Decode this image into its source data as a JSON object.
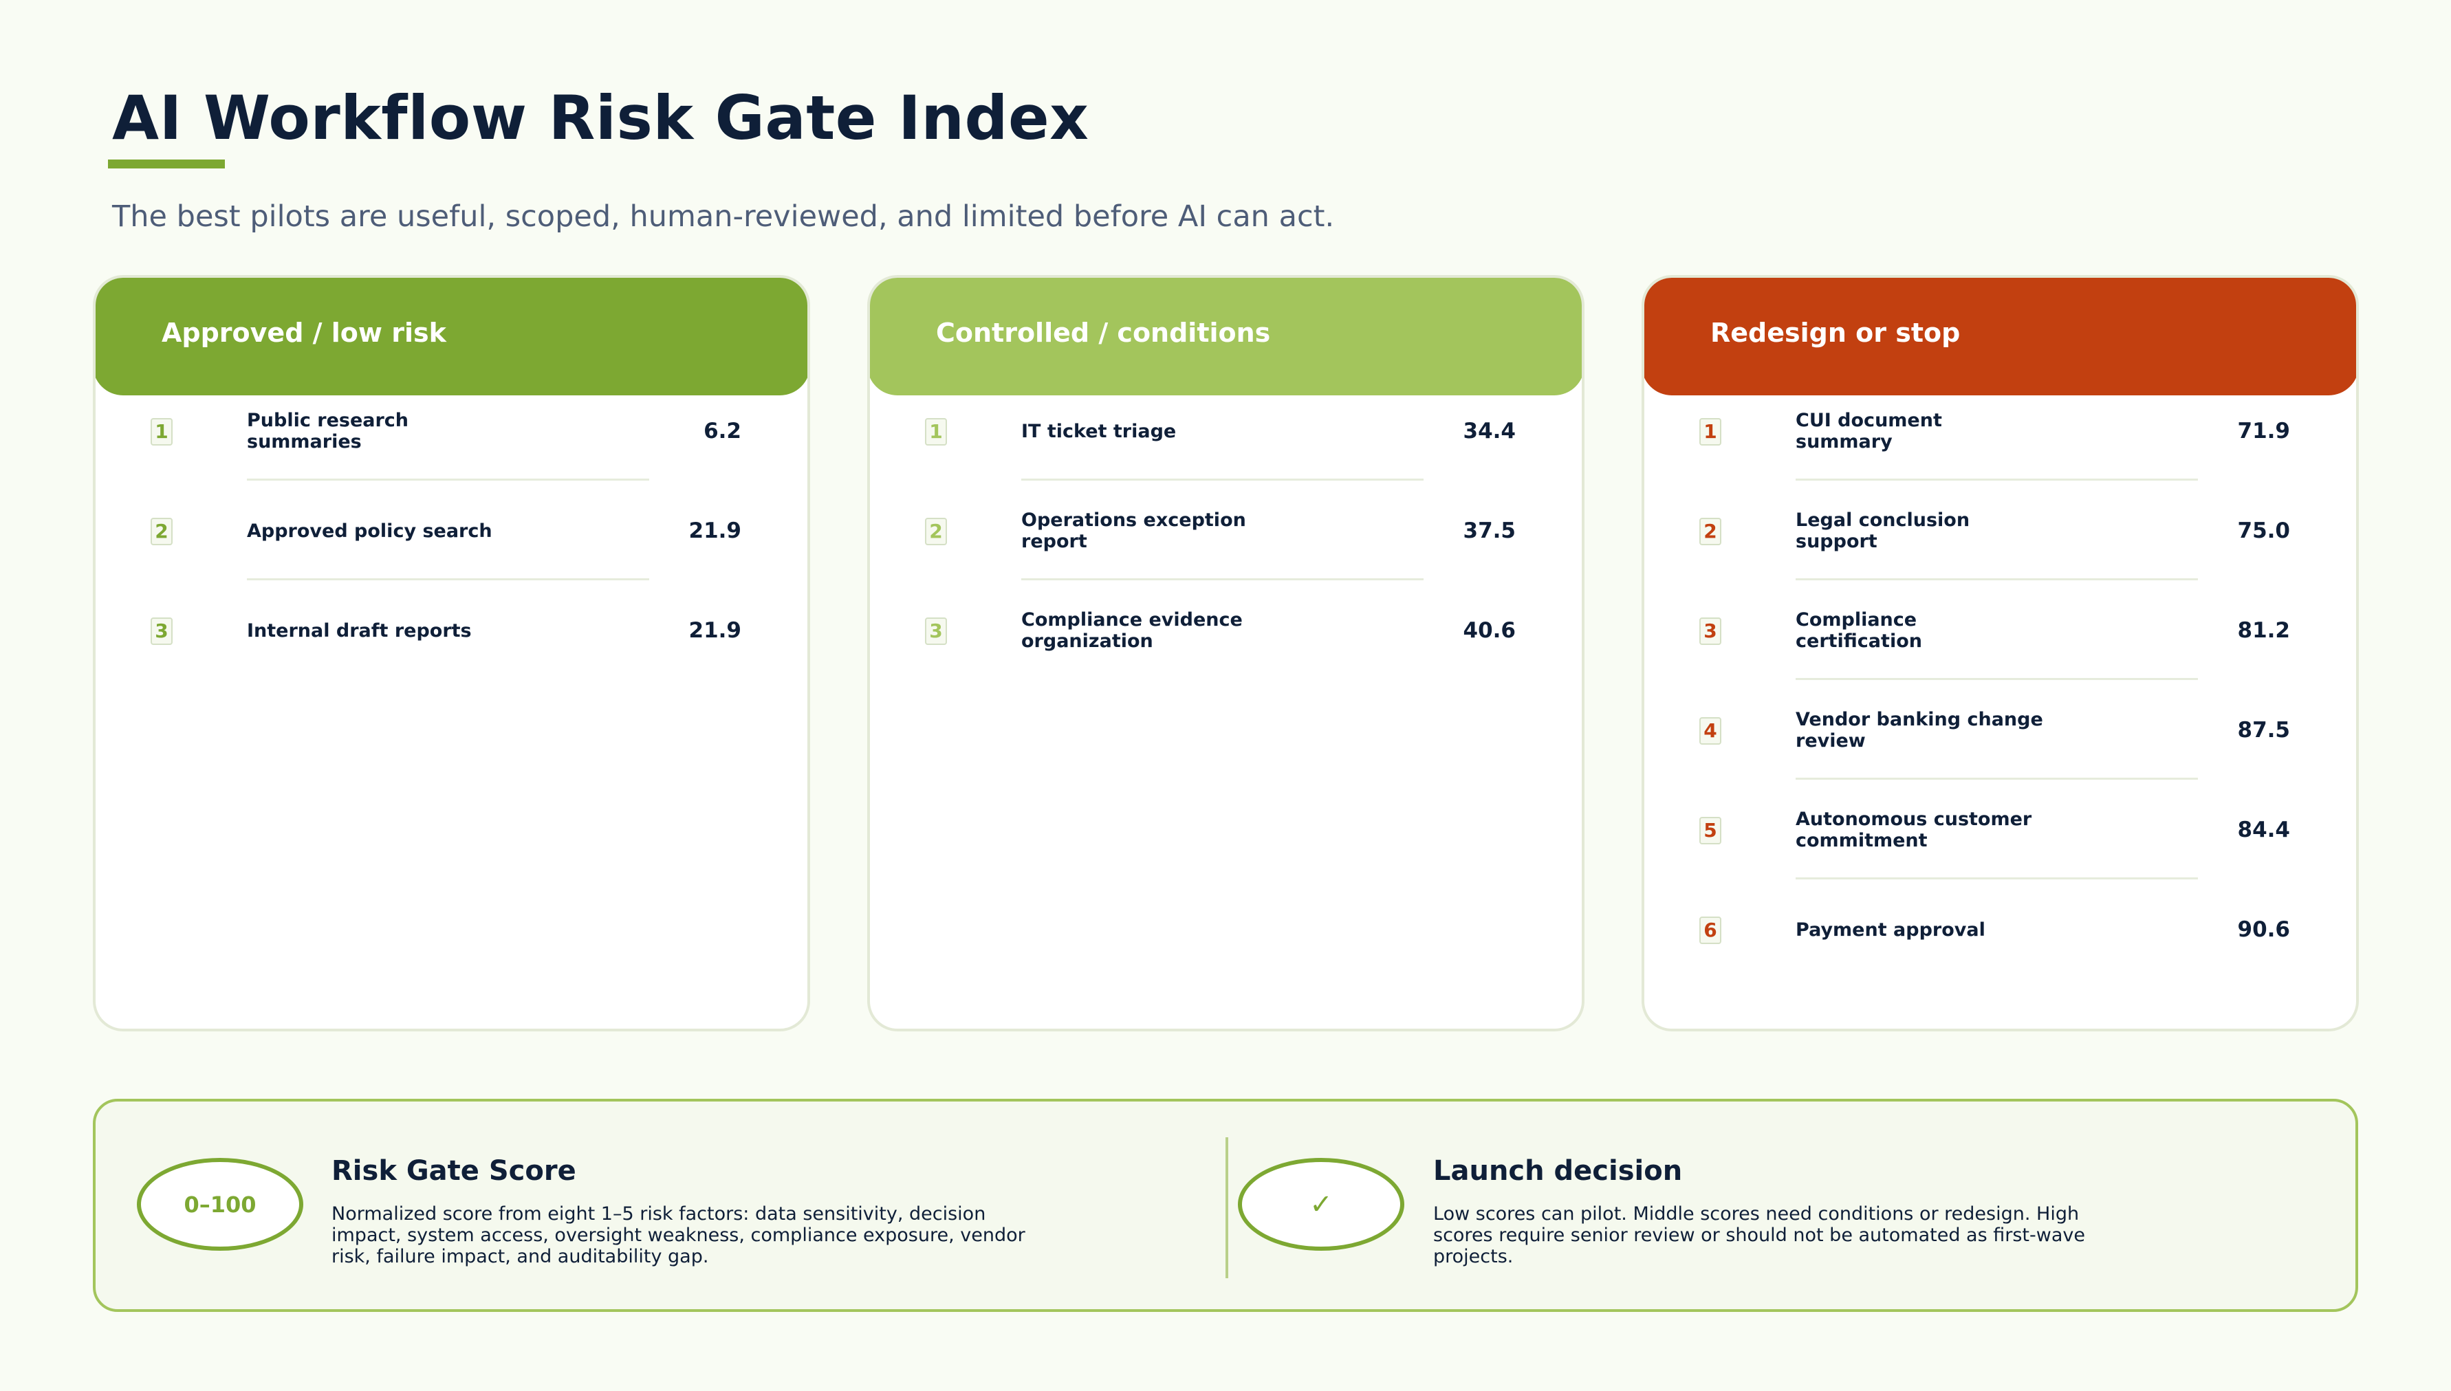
{
  "title": "AI Workflow Risk Gate Index",
  "subtitle": "The best pilots are useful, scoped, human-reviewed, and limited before AI can act.",
  "colors": {
    "approved": "#7da832",
    "controlled": "#a3c55c",
    "redesign": "#c24010",
    "text": "#0f1f38",
    "subtitle": "#4e5d78"
  },
  "columns": [
    {
      "label": "Approved / low risk",
      "color": "#7da832",
      "items": [
        {
          "rank": "1",
          "name": "Public research summaries",
          "score": "6.2"
        },
        {
          "rank": "2",
          "name": "Approved policy search",
          "score": "21.9"
        },
        {
          "rank": "3",
          "name": "Internal draft reports",
          "score": "21.9"
        }
      ]
    },
    {
      "label": "Controlled / conditions",
      "color": "#a3c55c",
      "items": [
        {
          "rank": "1",
          "name": "IT ticket triage",
          "score": "34.4"
        },
        {
          "rank": "2",
          "name": "Operations exception report",
          "score": "37.5"
        },
        {
          "rank": "3",
          "name": "Compliance evidence organization",
          "score": "40.6"
        }
      ]
    },
    {
      "label": "Redesign or stop",
      "color": "#c24010",
      "items": [
        {
          "rank": "1",
          "name": "CUI document summary",
          "score": "71.9"
        },
        {
          "rank": "2",
          "name": "Legal conclusion support",
          "score": "75.0"
        },
        {
          "rank": "3",
          "name": "Compliance certification",
          "score": "81.2"
        },
        {
          "rank": "4",
          "name": "Vendor banking change review",
          "score": "87.5"
        },
        {
          "rank": "5",
          "name": "Autonomous customer commitment",
          "score": "84.4"
        },
        {
          "rank": "6",
          "name": "Payment approval",
          "score": "90.6"
        }
      ]
    }
  ],
  "footer": {
    "score": {
      "badge": "0–100",
      "title": "Risk Gate Score",
      "description": "Normalized score from eight 1–5 risk factors: data sensitivity, decision impact, system access, oversight weakness, compliance exposure, vendor risk, failure impact, and auditability gap."
    },
    "decision": {
      "badge": "✓",
      "title": "Launch decision",
      "description": "Low scores can pilot. Middle scores need conditions or redesign. High scores require senior review or should not be automated as first-wave projects."
    }
  }
}
